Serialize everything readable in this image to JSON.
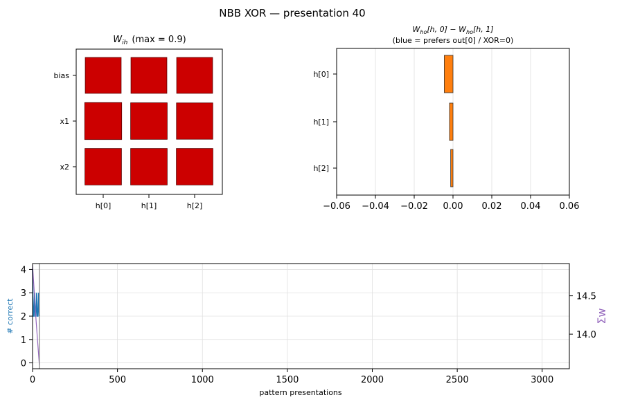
{
  "suptitle": "NBB XOR — presentation 40",
  "colors": {
    "weight_positive": "#cc0000",
    "diff_negative": "#ff7f0e",
    "correct_line": "#1f77b4",
    "sumw_line": "#9467bd",
    "current_marker": "#808080",
    "grid": "#e0e0e0"
  },
  "chart_data": [
    {
      "type": "heatmap",
      "title_symbol": "W",
      "title_subscript": "ih",
      "title_suffix": "(max = 0.9)",
      "rows": [
        "bias",
        "x1",
        "x2"
      ],
      "columns": [
        "h[0]",
        "h[1]",
        "h[2]"
      ],
      "max_abs": 0.9,
      "values": [
        [
          0.83,
          0.83,
          0.83
        ],
        [
          0.88,
          0.86,
          0.85
        ],
        [
          0.86,
          0.86,
          0.86
        ]
      ],
      "encoding": "square area proportional to |weight|; red = positive"
    },
    {
      "type": "bar",
      "orientation": "horizontal",
      "title_line1": "W_ho[h,0] − W_ho[h,1]",
      "title_line2": "(blue = prefers out[0] / XOR=0)",
      "categories": [
        "h[0]",
        "h[1]",
        "h[2]"
      ],
      "values": [
        -0.0045,
        -0.0018,
        -0.0012
      ],
      "xlim": [
        -0.06,
        0.06
      ],
      "xticks": [
        "−0.06",
        "−0.04",
        "−0.02",
        "0.00",
        "0.02",
        "0.04",
        "0.06"
      ],
      "xtick_values": [
        -0.06,
        -0.04,
        -0.02,
        0,
        0.02,
        0.04,
        0.06
      ],
      "grid": "x"
    },
    {
      "type": "line",
      "xlabel": "pattern presentations",
      "ylabel_left": "# correct",
      "ylabel_right": "Σw",
      "xlim": [
        0,
        3160
      ],
      "xticks": [
        "0",
        "500",
        "1000",
        "1500",
        "2000",
        "2500",
        "3000"
      ],
      "xtick_values": [
        0,
        500,
        1000,
        1500,
        2000,
        2500,
        3000
      ],
      "ylim_left": [
        -0.25,
        4.25
      ],
      "yticks_left": [
        "0",
        "1",
        "2",
        "3",
        "4"
      ],
      "yticks_left_values": [
        0,
        1,
        2,
        3,
        4
      ],
      "ylim_right": [
        13.55,
        14.92
      ],
      "yticks_right": [
        "14.0",
        "14.5"
      ],
      "yticks_right_values": [
        14.0,
        14.5
      ],
      "current_presentation": 40,
      "series": [
        {
          "axis": "left",
          "x": [
            0,
            4,
            8,
            12,
            16,
            20,
            24,
            28,
            32,
            36,
            40
          ],
          "y": [
            4,
            2,
            2,
            3,
            2,
            2,
            3,
            2,
            2,
            3,
            2
          ]
        },
        {
          "axis": "right",
          "x": [
            0,
            10,
            20,
            30,
            40
          ],
          "y": [
            14.9,
            14.55,
            14.2,
            13.9,
            13.6
          ]
        }
      ],
      "grid": true
    }
  ]
}
